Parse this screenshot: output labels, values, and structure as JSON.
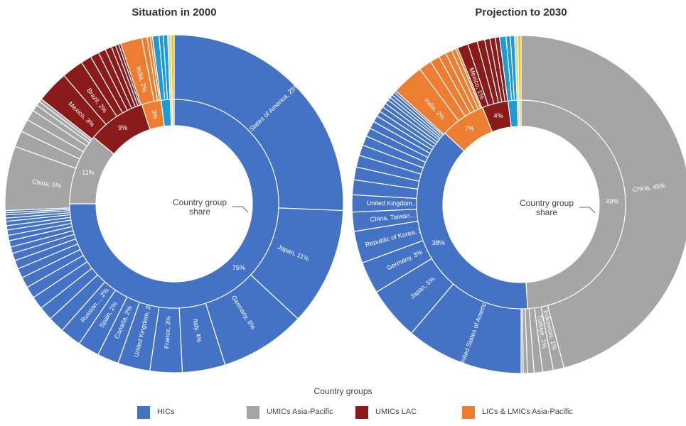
{
  "colors": {
    "HICs": "#4472C4",
    "UMICs Asia-Pacific": "#A5A5A5",
    "UMICs LAC": "#8B1A1A",
    "LICs & LMICs Asia-Pacific": "#ED7D31",
    "Other blue": "#1E9BD7",
    "Other yellow": "#F2C200",
    "Other light": "#C6D9A8"
  },
  "legend": {
    "title": "Country groups",
    "items": [
      {
        "label": "HICs",
        "color": "#4472C4"
      },
      {
        "label": "UMICs Asia-Pacific",
        "color": "#A5A5A5"
      },
      {
        "label": "UMICs LAC",
        "color": "#8B1A1A"
      },
      {
        "label": "LICs & LMICs Asia-Pacific",
        "color": "#ED7D31"
      }
    ]
  },
  "chart_data": [
    {
      "type": "pie",
      "title": "Situation in 2000",
      "center_label": [
        "Country group",
        "share"
      ],
      "inner_ring": [
        {
          "group": "HICs",
          "value": 75,
          "label": "75%"
        },
        {
          "group": "UMICs Asia-Pacific",
          "value": 11,
          "label": "11%"
        },
        {
          "group": "UMICs LAC",
          "value": 9,
          "label": "9%"
        },
        {
          "group": "LICs & LMICs Asia-Pacific",
          "value": 3,
          "label": "3%"
        },
        {
          "group": "Other blue",
          "value": 1.4,
          "label": ""
        },
        {
          "group": "Other light",
          "value": 0.3,
          "label": ""
        },
        {
          "group": "Other yellow",
          "value": 0.3,
          "label": ""
        }
      ],
      "outer_ring": [
        {
          "group": "HICs",
          "value": 25,
          "label": "United States of America, 25%"
        },
        {
          "group": "HICs",
          "value": 11,
          "label": "Japan, 11%"
        },
        {
          "group": "HICs",
          "value": 8,
          "label": "Germany, 8%"
        },
        {
          "group": "HICs",
          "value": 4,
          "label": "Italy, 4%"
        },
        {
          "group": "HICs",
          "value": 3,
          "label": "France, 3%"
        },
        {
          "group": "HICs",
          "value": 3,
          "label": "United Kingdom, 3%"
        },
        {
          "group": "HICs",
          "value": 2,
          "label": "Canada, 2%"
        },
        {
          "group": "HICs",
          "value": 2,
          "label": "Spain, 2%"
        },
        {
          "group": "HICs",
          "value": 2,
          "label": "Russian..., 2%"
        },
        {
          "group": "HICs",
          "value": 1.5,
          "label": ""
        },
        {
          "group": "HICs",
          "value": 1.3,
          "label": ""
        },
        {
          "group": "HICs",
          "value": 1.2,
          "label": ""
        },
        {
          "group": "HICs",
          "value": 1.1,
          "label": ""
        },
        {
          "group": "HICs",
          "value": 1.0,
          "label": ""
        },
        {
          "group": "HICs",
          "value": 0.9,
          "label": ""
        },
        {
          "group": "HICs",
          "value": 0.8,
          "label": ""
        },
        {
          "group": "HICs",
          "value": 0.7,
          "label": ""
        },
        {
          "group": "HICs",
          "value": 0.6,
          "label": ""
        },
        {
          "group": "HICs",
          "value": 0.6,
          "label": ""
        },
        {
          "group": "HICs",
          "value": 0.5,
          "label": ""
        },
        {
          "group": "HICs",
          "value": 0.5,
          "label": ""
        },
        {
          "group": "HICs",
          "value": 0.4,
          "label": ""
        },
        {
          "group": "HICs",
          "value": 0.4,
          "label": ""
        },
        {
          "group": "HICs",
          "value": 0.3,
          "label": ""
        },
        {
          "group": "HICs",
          "value": 0.3,
          "label": ""
        },
        {
          "group": "HICs",
          "value": 0.2,
          "label": ""
        },
        {
          "group": "HICs",
          "value": 0.2,
          "label": ""
        },
        {
          "group": "UMICs Asia-Pacific",
          "value": 6,
          "label": "China, 6%"
        },
        {
          "group": "UMICs Asia-Pacific",
          "value": 1.5,
          "label": ""
        },
        {
          "group": "UMICs Asia-Pacific",
          "value": 1.2,
          "label": ""
        },
        {
          "group": "UMICs Asia-Pacific",
          "value": 1.0,
          "label": ""
        },
        {
          "group": "UMICs Asia-Pacific",
          "value": 0.6,
          "label": ""
        },
        {
          "group": "UMICs Asia-Pacific",
          "value": 0.4,
          "label": ""
        },
        {
          "group": "UMICs Asia-Pacific",
          "value": 0.3,
          "label": ""
        },
        {
          "group": "UMICs LAC",
          "value": 3,
          "label": "Mexico, 3%"
        },
        {
          "group": "UMICs LAC",
          "value": 2,
          "label": "Brazil, 2%"
        },
        {
          "group": "UMICs LAC",
          "value": 1.0,
          "label": ""
        },
        {
          "group": "UMICs LAC",
          "value": 0.8,
          "label": ""
        },
        {
          "group": "UMICs LAC",
          "value": 0.7,
          "label": ""
        },
        {
          "group": "UMICs LAC",
          "value": 0.6,
          "label": ""
        },
        {
          "group": "UMICs LAC",
          "value": 0.4,
          "label": ""
        },
        {
          "group": "UMICs LAC",
          "value": 0.3,
          "label": ""
        },
        {
          "group": "UMICs LAC",
          "value": 0.2,
          "label": ""
        },
        {
          "group": "LICs & LMICs Asia-Pacific",
          "value": 2,
          "label": "India, 2%"
        },
        {
          "group": "LICs & LMICs Asia-Pacific",
          "value": 0.5,
          "label": ""
        },
        {
          "group": "LICs & LMICs Asia-Pacific",
          "value": 0.3,
          "label": ""
        },
        {
          "group": "LICs & LMICs Asia-Pacific",
          "value": 0.2,
          "label": ""
        },
        {
          "group": "Other blue",
          "value": 0.6,
          "label": ""
        },
        {
          "group": "Other blue",
          "value": 0.4,
          "label": ""
        },
        {
          "group": "Other blue",
          "value": 0.4,
          "label": ""
        },
        {
          "group": "Other light",
          "value": 0.3,
          "label": ""
        },
        {
          "group": "Other yellow",
          "value": 0.3,
          "label": ""
        }
      ]
    },
    {
      "type": "pie",
      "title": "Projection to 2030",
      "center_label": [
        "Country group",
        "share"
      ],
      "inner_ring": [
        {
          "group": "UMICs Asia-Pacific",
          "value": 49,
          "label": "49%"
        },
        {
          "group": "HICs",
          "value": 38,
          "label": "38%"
        },
        {
          "group": "LICs & LMICs Asia-Pacific",
          "value": 7,
          "label": "7%"
        },
        {
          "group": "UMICs LAC",
          "value": 4,
          "label": "4%"
        },
        {
          "group": "Other blue",
          "value": 1.4,
          "label": ""
        },
        {
          "group": "Other light",
          "value": 0.3,
          "label": ""
        },
        {
          "group": "Other yellow",
          "value": 0.3,
          "label": ""
        }
      ],
      "outer_ring": [
        {
          "group": "UMICs Asia-Pacific",
          "value": 45,
          "label": "China, 45%"
        },
        {
          "group": "UMICs Asia-Pacific",
          "value": 1,
          "label": "Indonesia, 1%"
        },
        {
          "group": "UMICs Asia-Pacific",
          "value": 1,
          "label": "Türkiye, 1%"
        },
        {
          "group": "UMICs Asia-Pacific",
          "value": 0.8,
          "label": ""
        },
        {
          "group": "UMICs Asia-Pacific",
          "value": 0.6,
          "label": ""
        },
        {
          "group": "UMICs Asia-Pacific",
          "value": 0.4,
          "label": ""
        },
        {
          "group": "UMICs Asia-Pacific",
          "value": 0.2,
          "label": ""
        },
        {
          "group": "HICs",
          "value": 11,
          "label": "United States of America, 11%"
        },
        {
          "group": "HICs",
          "value": 5,
          "label": "Japan, 5%"
        },
        {
          "group": "HICs",
          "value": 3,
          "label": "Germany, 3%"
        },
        {
          "group": "HICs",
          "value": 3,
          "label": "Republic of Korea, 3%"
        },
        {
          "group": "HICs",
          "value": 1.8,
          "label": "China, Taiwan..."
        },
        {
          "group": "HICs",
          "value": 1.6,
          "label": "United Kingdom..."
        },
        {
          "group": "HICs",
          "value": 1.4,
          "label": ""
        },
        {
          "group": "HICs",
          "value": 1.2,
          "label": ""
        },
        {
          "group": "HICs",
          "value": 1.1,
          "label": ""
        },
        {
          "group": "HICs",
          "value": 1.0,
          "label": ""
        },
        {
          "group": "HICs",
          "value": 0.9,
          "label": ""
        },
        {
          "group": "HICs",
          "value": 0.8,
          "label": ""
        },
        {
          "group": "HICs",
          "value": 0.7,
          "label": ""
        },
        {
          "group": "HICs",
          "value": 0.6,
          "label": ""
        },
        {
          "group": "HICs",
          "value": 0.5,
          "label": ""
        },
        {
          "group": "HICs",
          "value": 0.5,
          "label": ""
        },
        {
          "group": "HICs",
          "value": 0.4,
          "label": ""
        },
        {
          "group": "HICs",
          "value": 0.4,
          "label": ""
        },
        {
          "group": "HICs",
          "value": 0.3,
          "label": ""
        },
        {
          "group": "HICs",
          "value": 0.3,
          "label": ""
        },
        {
          "group": "HICs",
          "value": 0.3,
          "label": ""
        },
        {
          "group": "HICs",
          "value": 0.2,
          "label": ""
        },
        {
          "group": "LICs & LMICs Asia-Pacific",
          "value": 3,
          "label": "India, 3%"
        },
        {
          "group": "LICs & LMICs Asia-Pacific",
          "value": 1.2,
          "label": ""
        },
        {
          "group": "LICs & LMICs Asia-Pacific",
          "value": 0.9,
          "label": ""
        },
        {
          "group": "LICs & LMICs Asia-Pacific",
          "value": 0.7,
          "label": ""
        },
        {
          "group": "LICs & LMICs Asia-Pacific",
          "value": 0.6,
          "label": ""
        },
        {
          "group": "LICs & LMICs Asia-Pacific",
          "value": 0.4,
          "label": ""
        },
        {
          "group": "LICs & LMICs Asia-Pacific",
          "value": 0.2,
          "label": ""
        },
        {
          "group": "UMICs LAC",
          "value": 1,
          "label": "Mexico, 1%"
        },
        {
          "group": "UMICs LAC",
          "value": 0.9,
          "label": ""
        },
        {
          "group": "UMICs LAC",
          "value": 0.7,
          "label": ""
        },
        {
          "group": "UMICs LAC",
          "value": 0.5,
          "label": ""
        },
        {
          "group": "UMICs LAC",
          "value": 0.5,
          "label": ""
        },
        {
          "group": "UMICs LAC",
          "value": 0.4,
          "label": ""
        },
        {
          "group": "Other blue",
          "value": 0.6,
          "label": ""
        },
        {
          "group": "Other blue",
          "value": 0.4,
          "label": ""
        },
        {
          "group": "Other blue",
          "value": 0.4,
          "label": ""
        },
        {
          "group": "Other light",
          "value": 0.3,
          "label": ""
        },
        {
          "group": "Other yellow",
          "value": 0.3,
          "label": ""
        }
      ]
    }
  ]
}
